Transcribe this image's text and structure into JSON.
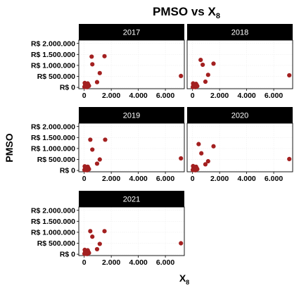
{
  "chart_data": {
    "type": "scatter",
    "title": "PMSO vs X",
    "title_subscript": "8",
    "xlabel": "X",
    "xlabel_subscript": "8",
    "ylabel": "PMSO",
    "layout": "facet grid, 2 columns",
    "xlim": [
      -400,
      7400
    ],
    "ylim": [
      -60000,
      2150000
    ],
    "x_ticks": [
      0,
      2000,
      4000,
      6000
    ],
    "x_tick_labels": [
      "0",
      "2.000",
      "4.000",
      "6.000"
    ],
    "y_ticks": [
      0,
      500000,
      1000000,
      1500000,
      2000000
    ],
    "y_tick_labels": [
      "R$ 0",
      "R$ 500.000",
      "R$ 1.000.000",
      "R$ 1.500.000",
      "R$ 2.000.000"
    ],
    "grid": true,
    "point_color": "#a32020",
    "strip_color": "#000000",
    "panels": [
      {
        "label": "2017",
        "points": [
          [
            20,
            20000
          ],
          [
            60,
            90000
          ],
          [
            100,
            140000
          ],
          [
            140,
            60000
          ],
          [
            180,
            30000
          ],
          [
            220,
            10000
          ],
          [
            40,
            200000
          ],
          [
            260,
            180000
          ],
          [
            300,
            120000
          ],
          [
            350,
            70000
          ],
          [
            80,
            50000
          ],
          [
            160,
            110000
          ],
          [
            200,
            160000
          ],
          [
            120,
            20000
          ],
          [
            550,
            1400000
          ],
          [
            600,
            1050000
          ],
          [
            1500,
            1420000
          ],
          [
            1150,
            650000
          ],
          [
            950,
            240000
          ],
          [
            7150,
            520000
          ]
        ]
      },
      {
        "label": "2018",
        "points": [
          [
            20,
            15000
          ],
          [
            60,
            100000
          ],
          [
            100,
            150000
          ],
          [
            140,
            50000
          ],
          [
            180,
            25000
          ],
          [
            220,
            10000
          ],
          [
            40,
            180000
          ],
          [
            260,
            160000
          ],
          [
            300,
            100000
          ],
          [
            350,
            60000
          ],
          [
            80,
            40000
          ],
          [
            160,
            120000
          ],
          [
            200,
            140000
          ],
          [
            120,
            20000
          ],
          [
            600,
            1250000
          ],
          [
            750,
            1030000
          ],
          [
            1550,
            1080000
          ],
          [
            1150,
            570000
          ],
          [
            950,
            260000
          ],
          [
            7150,
            550000
          ]
        ]
      },
      {
        "label": "2019",
        "points": [
          [
            20,
            20000
          ],
          [
            60,
            80000
          ],
          [
            100,
            130000
          ],
          [
            140,
            50000
          ],
          [
            180,
            30000
          ],
          [
            220,
            10000
          ],
          [
            40,
            190000
          ],
          [
            260,
            170000
          ],
          [
            300,
            110000
          ],
          [
            350,
            60000
          ],
          [
            80,
            40000
          ],
          [
            160,
            100000
          ],
          [
            200,
            150000
          ],
          [
            120,
            20000
          ],
          [
            450,
            1400000
          ],
          [
            600,
            950000
          ],
          [
            1550,
            1400000
          ],
          [
            1150,
            500000
          ],
          [
            950,
            310000
          ],
          [
            7150,
            550000
          ]
        ]
      },
      {
        "label": "2020",
        "points": [
          [
            20,
            20000
          ],
          [
            60,
            90000
          ],
          [
            100,
            140000
          ],
          [
            140,
            50000
          ],
          [
            180,
            30000
          ],
          [
            220,
            10000
          ],
          [
            40,
            200000
          ],
          [
            260,
            170000
          ],
          [
            300,
            110000
          ],
          [
            350,
            60000
          ],
          [
            80,
            40000
          ],
          [
            160,
            110000
          ],
          [
            200,
            150000
          ],
          [
            120,
            20000
          ],
          [
            450,
            1200000
          ],
          [
            650,
            780000
          ],
          [
            1550,
            1100000
          ],
          [
            1150,
            420000
          ],
          [
            950,
            280000
          ],
          [
            7150,
            520000
          ]
        ]
      },
      {
        "label": "2021",
        "points": [
          [
            20,
            20000
          ],
          [
            60,
            90000
          ],
          [
            100,
            140000
          ],
          [
            140,
            50000
          ],
          [
            180,
            30000
          ],
          [
            220,
            10000
          ],
          [
            40,
            200000
          ],
          [
            260,
            180000
          ],
          [
            300,
            110000
          ],
          [
            350,
            60000
          ],
          [
            80,
            40000
          ],
          [
            160,
            100000
          ],
          [
            200,
            150000
          ],
          [
            120,
            20000
          ],
          [
            450,
            1050000
          ],
          [
            600,
            800000
          ],
          [
            1500,
            1050000
          ],
          [
            1150,
            470000
          ],
          [
            950,
            230000
          ],
          [
            7150,
            500000
          ]
        ]
      }
    ]
  }
}
